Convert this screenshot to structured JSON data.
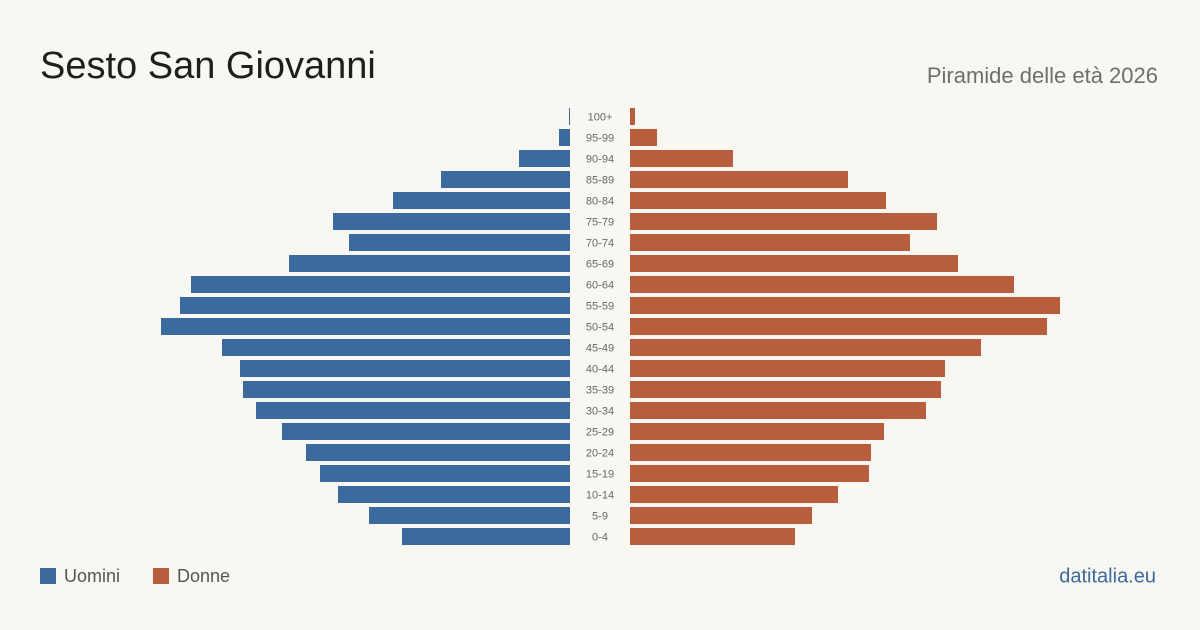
{
  "chart_data": {
    "type": "pyramid",
    "title": "Sesto San Giovanni",
    "subtitle": "Piramide delle età 2026",
    "source": "datitalia.eu",
    "categories": [
      "100+",
      "95-99",
      "90-94",
      "85-89",
      "80-84",
      "75-79",
      "70-74",
      "65-69",
      "60-64",
      "55-59",
      "50-54",
      "45-49",
      "40-44",
      "35-39",
      "30-34",
      "25-29",
      "20-24",
      "15-19",
      "10-14",
      "5-9",
      "0-4"
    ],
    "series": [
      {
        "name": "Uomini",
        "color": "#3b6a9c",
        "values": [
          8,
          88,
          408,
          1032,
          1416,
          1896,
          1768,
          2248,
          3032,
          3120,
          3272,
          2784,
          2640,
          2616,
          2512,
          2304,
          2112,
          2000,
          1856,
          1608,
          1344
        ]
      },
      {
        "name": "Donne",
        "color": "#b95e3d",
        "values": [
          40,
          216,
          824,
          1744,
          2048,
          2456,
          2240,
          2624,
          3072,
          3440,
          3336,
          2808,
          2520,
          2488,
          2368,
          2032,
          1928,
          1912,
          1664,
          1456,
          1320
        ]
      }
    ],
    "xlim": [
      0,
      3440
    ]
  }
}
